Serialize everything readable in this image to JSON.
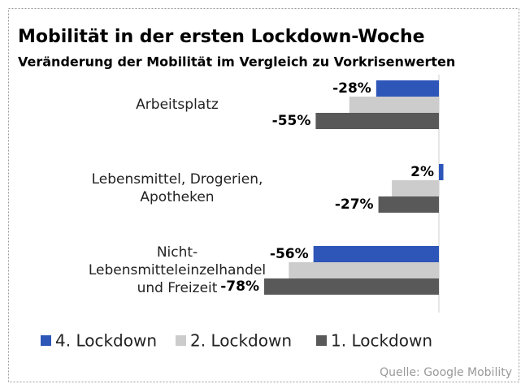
{
  "chart_data": {
    "type": "hbar",
    "title": "Mobilität in der ersten Lockdown-Woche",
    "subtitle": "Veränderung der Mobilität im Vergleich zu Vorkrisenwerten",
    "categories": [
      "Arbeitsplatz",
      "Lebensmittel, Drogerien,\nApotheken",
      "Nicht-\nLebensmitteleinzelhandel\nund Freizeit"
    ],
    "series": [
      {
        "name": "4. Lockdown",
        "color": "#2e55b8",
        "values": [
          -28,
          2,
          -56
        ],
        "value_labels": [
          "-28%",
          "2%",
          "-56%"
        ]
      },
      {
        "name": "2. Lockdown",
        "color": "#cccccc",
        "values": [
          -40,
          -21,
          -67
        ]
      },
      {
        "name": "1. Lockdown",
        "color": "#595959",
        "values": [
          -55,
          -27,
          -78
        ],
        "value_labels": [
          "-55%",
          "-27%",
          "-78%"
        ]
      }
    ],
    "source": "Quelle: Google Mobility"
  }
}
